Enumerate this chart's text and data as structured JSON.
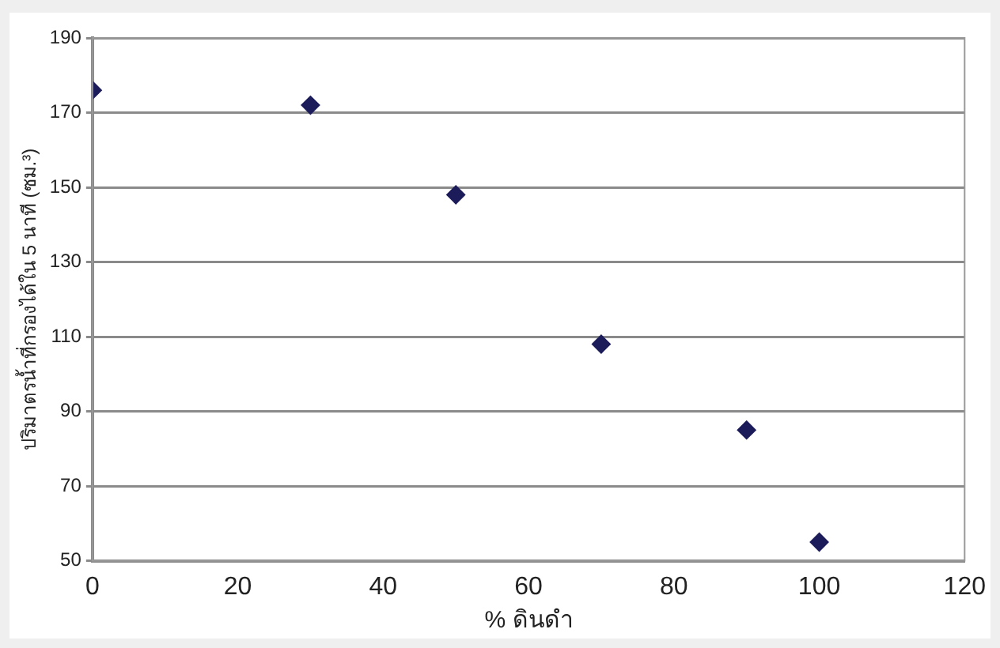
{
  "chart_data": {
    "type": "scatter",
    "xlabel": "% ดินดำ",
    "ylabel": "ปริมาตรน้ำที่กรองได้ใน 5 นาที (ซม.³)",
    "x": [
      0,
      30,
      50,
      70,
      90,
      100
    ],
    "series": [
      {
        "color": "#1c1c5a",
        "values": [
          176,
          172,
          148,
          108,
          85,
          55
        ]
      }
    ],
    "xlim": [
      0,
      120
    ],
    "xticks": [
      0,
      20,
      40,
      60,
      80,
      100,
      120
    ],
    "ylim": [
      50,
      190
    ],
    "yticks": [
      50,
      70,
      90,
      110,
      130,
      150,
      170,
      190
    ],
    "grid": "y",
    "legend": false,
    "marker": "diamond"
  }
}
